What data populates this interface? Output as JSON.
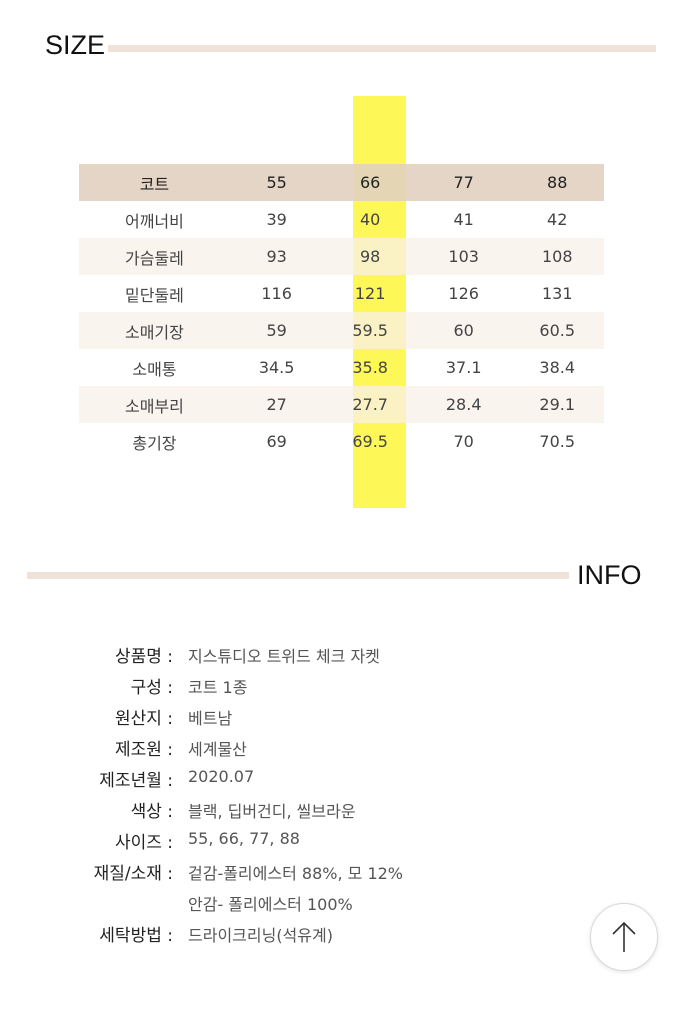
{
  "size_section": {
    "heading": "SIZE",
    "columns": [
      "코트",
      "55",
      "66",
      "77",
      "88"
    ],
    "highlight_column": "66",
    "rows": [
      {
        "label": "어깨너비",
        "values": [
          "39",
          "40",
          "41",
          "42"
        ]
      },
      {
        "label": "가슴둘레",
        "values": [
          "93",
          "98",
          "103",
          "108"
        ]
      },
      {
        "label": "밑단둘레",
        "values": [
          "116",
          "121",
          "126",
          "131"
        ]
      },
      {
        "label": "소매기장",
        "values": [
          "59",
          "59.5",
          "60",
          "60.5"
        ]
      },
      {
        "label": "소매통",
        "values": [
          "34.5",
          "35.8",
          "37.1",
          "38.4"
        ]
      },
      {
        "label": "소매부리",
        "values": [
          "27",
          "27.7",
          "28.4",
          "29.1"
        ]
      },
      {
        "label": "총기장",
        "values": [
          "69",
          "69.5",
          "70",
          "70.5"
        ]
      }
    ]
  },
  "info_section": {
    "heading": "INFO",
    "items": [
      {
        "label": "상품명 :",
        "value": "지스튜디오 트위드 체크 자켓"
      },
      {
        "label": "구성 :",
        "value": "코트 1종"
      },
      {
        "label": "원산지 :",
        "value": "베트남"
      },
      {
        "label": "제조원 :",
        "value": "세계물산"
      },
      {
        "label": "제조년월 :",
        "value": "2020.07"
      },
      {
        "label": "색상 :",
        "value": "블랙, 딥버건디, 씰브라운"
      },
      {
        "label": "사이즈 :",
        "value": "55, 66, 77, 88"
      },
      {
        "label": "재질/소재 :",
        "value": "겉감-폴리에스터 88%, 모 12%"
      },
      {
        "label": "",
        "value": "안감- 폴리에스터 100%"
      },
      {
        "label": "세탁방법 :",
        "value": "드라이크리닝(석유계)"
      }
    ]
  },
  "scroll_top_button": {
    "icon": "arrow-up-icon"
  },
  "colors": {
    "rule": "#efe3d9",
    "header_row": "#e1d0c0",
    "shade_row": "#f8f0ea",
    "highlight": "#fdf74a"
  }
}
